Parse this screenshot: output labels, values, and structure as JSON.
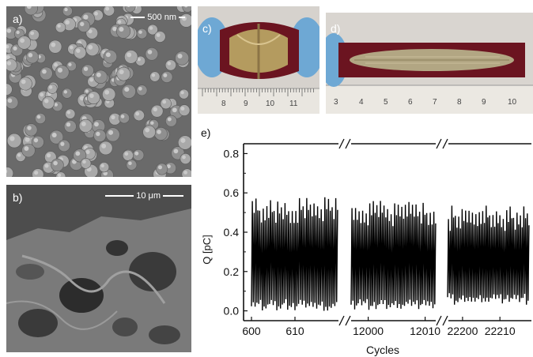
{
  "panels": {
    "a": {
      "label": "a)",
      "scale": "500 nm"
    },
    "b": {
      "label": "b)",
      "scale": "10 μm"
    },
    "c": {
      "label": "c)",
      "ruler_ticks": [
        "8",
        "9",
        "10",
        "11"
      ]
    },
    "d": {
      "label": "d)",
      "ruler_ticks": [
        "3",
        "4",
        "5",
        "6",
        "7",
        "8",
        "9",
        "10"
      ]
    },
    "e": {
      "label": "e)"
    }
  },
  "chart_data": {
    "type": "line",
    "xlabel": "Cycles",
    "ylabel": "Q [pC]",
    "ylim": [
      -0.05,
      0.85
    ],
    "yticks": [
      "0.0",
      "0.2",
      "0.4",
      "0.6",
      "0.8"
    ],
    "segments": [
      {
        "xticks": [
          "600",
          "610"
        ],
        "x_range": [
          600,
          620
        ],
        "peak_mean": 0.54,
        "trough_mean": 0.02,
        "cycles": 24
      },
      {
        "xticks": [
          "12000",
          "12010"
        ],
        "x_range": [
          11997,
          12012
        ],
        "peak_mean": 0.53,
        "trough_mean": 0.02,
        "cycles": 24
      },
      {
        "xticks": [
          "22200",
          "22210"
        ],
        "x_range": [
          22196,
          22218
        ],
        "peak_mean": 0.5,
        "trough_mean": 0.05,
        "cycles": 24
      }
    ]
  }
}
